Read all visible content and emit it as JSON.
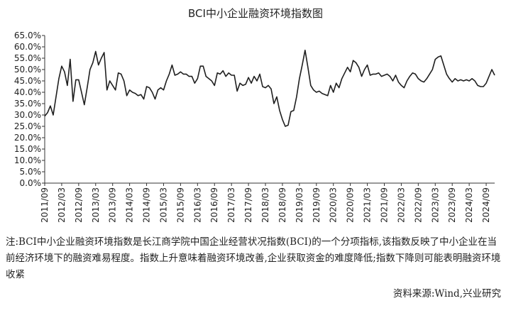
{
  "chart_data": {
    "type": "line",
    "title": "BCI中小企业融资环境指数图",
    "categories": [
      "2011/09",
      null,
      null,
      null,
      null,
      null,
      "2012/03",
      null,
      null,
      null,
      null,
      null,
      "2012/09",
      null,
      null,
      null,
      null,
      null,
      "2013/03",
      null,
      null,
      null,
      null,
      null,
      "2013/09",
      null,
      null,
      null,
      null,
      null,
      "2014/03",
      null,
      null,
      null,
      null,
      null,
      "2014/09",
      null,
      null,
      null,
      null,
      null,
      "2015/03",
      null,
      null,
      null,
      null,
      null,
      "2015/09",
      null,
      null,
      null,
      null,
      null,
      "2016/03",
      null,
      null,
      null,
      null,
      null,
      "2016/09",
      null,
      null,
      null,
      null,
      null,
      "2017/03",
      null,
      null,
      null,
      null,
      null,
      "2017/09",
      null,
      null,
      null,
      null,
      null,
      "2018/03",
      null,
      null,
      null,
      null,
      null,
      "2018/09",
      null,
      null,
      null,
      null,
      null,
      "2019/03",
      null,
      null,
      null,
      null,
      null,
      "2019/09",
      null,
      null,
      null,
      null,
      null,
      "2020/03",
      null,
      null,
      null,
      null,
      null,
      "2020/09",
      null,
      null,
      null,
      null,
      null,
      "2021/03",
      null,
      null,
      null,
      null,
      null,
      "2021/09",
      null,
      null,
      null,
      null,
      null,
      "2022/03",
      null,
      null,
      null,
      null,
      null,
      "2022/09",
      null,
      null,
      null,
      null,
      null,
      "2023/03",
      null,
      null,
      null,
      null,
      null,
      "2023/09",
      null,
      null,
      null,
      null,
      null,
      "2024/03",
      null,
      null,
      null,
      null,
      null,
      "2024/09",
      null,
      null,
      null
    ],
    "series": [
      {
        "name": "BCI中小企业融资环境指数",
        "color": "#1f1f1f",
        "values": [
          29.5,
          31,
          34,
          30,
          38,
          46,
          51.5,
          49,
          43,
          54.5,
          36,
          45.5,
          45.5,
          40,
          34.5,
          42,
          50,
          53,
          58,
          52,
          55,
          57.5,
          41,
          45,
          43,
          41,
          48.5,
          48,
          45,
          38.5,
          41,
          40,
          39.5,
          38.5,
          39,
          37,
          42.5,
          42,
          40,
          37,
          41,
          42,
          41,
          45,
          48,
          52,
          47.5,
          48,
          49,
          48,
          48,
          47,
          47,
          44,
          46,
          51.5,
          51.5,
          47,
          46,
          45,
          43,
          48.5,
          48,
          49.5,
          47,
          48.5,
          47.5,
          47.5,
          40.5,
          44,
          43,
          43.5,
          46.5,
          44,
          47,
          45,
          48,
          42.5,
          42,
          43,
          41.5,
          35,
          38,
          32,
          28,
          25,
          25.5,
          31.5,
          32,
          38,
          46,
          52,
          58.5,
          51,
          43,
          41,
          40,
          40.5,
          39.5,
          39,
          38.5,
          43,
          40,
          44,
          42,
          46,
          48.5,
          51,
          49,
          54,
          53,
          51,
          47,
          50,
          52,
          47.5,
          48,
          48,
          48.5,
          47,
          47.5,
          48,
          47,
          45,
          47.5,
          44.5,
          43,
          42,
          45,
          47,
          48.5,
          48,
          46,
          45,
          44.5,
          46,
          48,
          50,
          54.5,
          55.5,
          56,
          52,
          48,
          46,
          44.5,
          46,
          45,
          45.5,
          45,
          45.5,
          45,
          46,
          45,
          43,
          42.5,
          42.5,
          44,
          47,
          50,
          47.5
        ]
      }
    ],
    "ylim": [
      0,
      65
    ],
    "yticks": [
      {
        "value": 0,
        "label": "0.0%"
      },
      {
        "value": 5,
        "label": "5.0%"
      },
      {
        "value": 10,
        "label": "10.0%"
      },
      {
        "value": 15,
        "label": "15.0%"
      },
      {
        "value": 20,
        "label": "20.0%"
      },
      {
        "value": 25,
        "label": "25.0%"
      },
      {
        "value": 30,
        "label": "30.0%"
      },
      {
        "value": 35,
        "label": "35.0%"
      },
      {
        "value": 40,
        "label": "40.0%"
      },
      {
        "value": 45,
        "label": "45.0%"
      },
      {
        "value": 50,
        "label": "50.0%"
      },
      {
        "value": 55,
        "label": "55.0%"
      },
      {
        "value": 60,
        "label": "60.0%"
      },
      {
        "value": 65,
        "label": "65.0%"
      }
    ],
    "grid": false,
    "note": "注:BCI中小企业融资环境指数是长江商学院中国企业经营状况指数(BCI)的一个分项指标,该指数反映了中小企业在当前经济环境下的融资难易程度。指数上升意味着融资环境改善,企业获取资金的难度降低;指数下降则可能表明融资环境收紧",
    "source": "资料来源:Wind,兴业研究"
  }
}
